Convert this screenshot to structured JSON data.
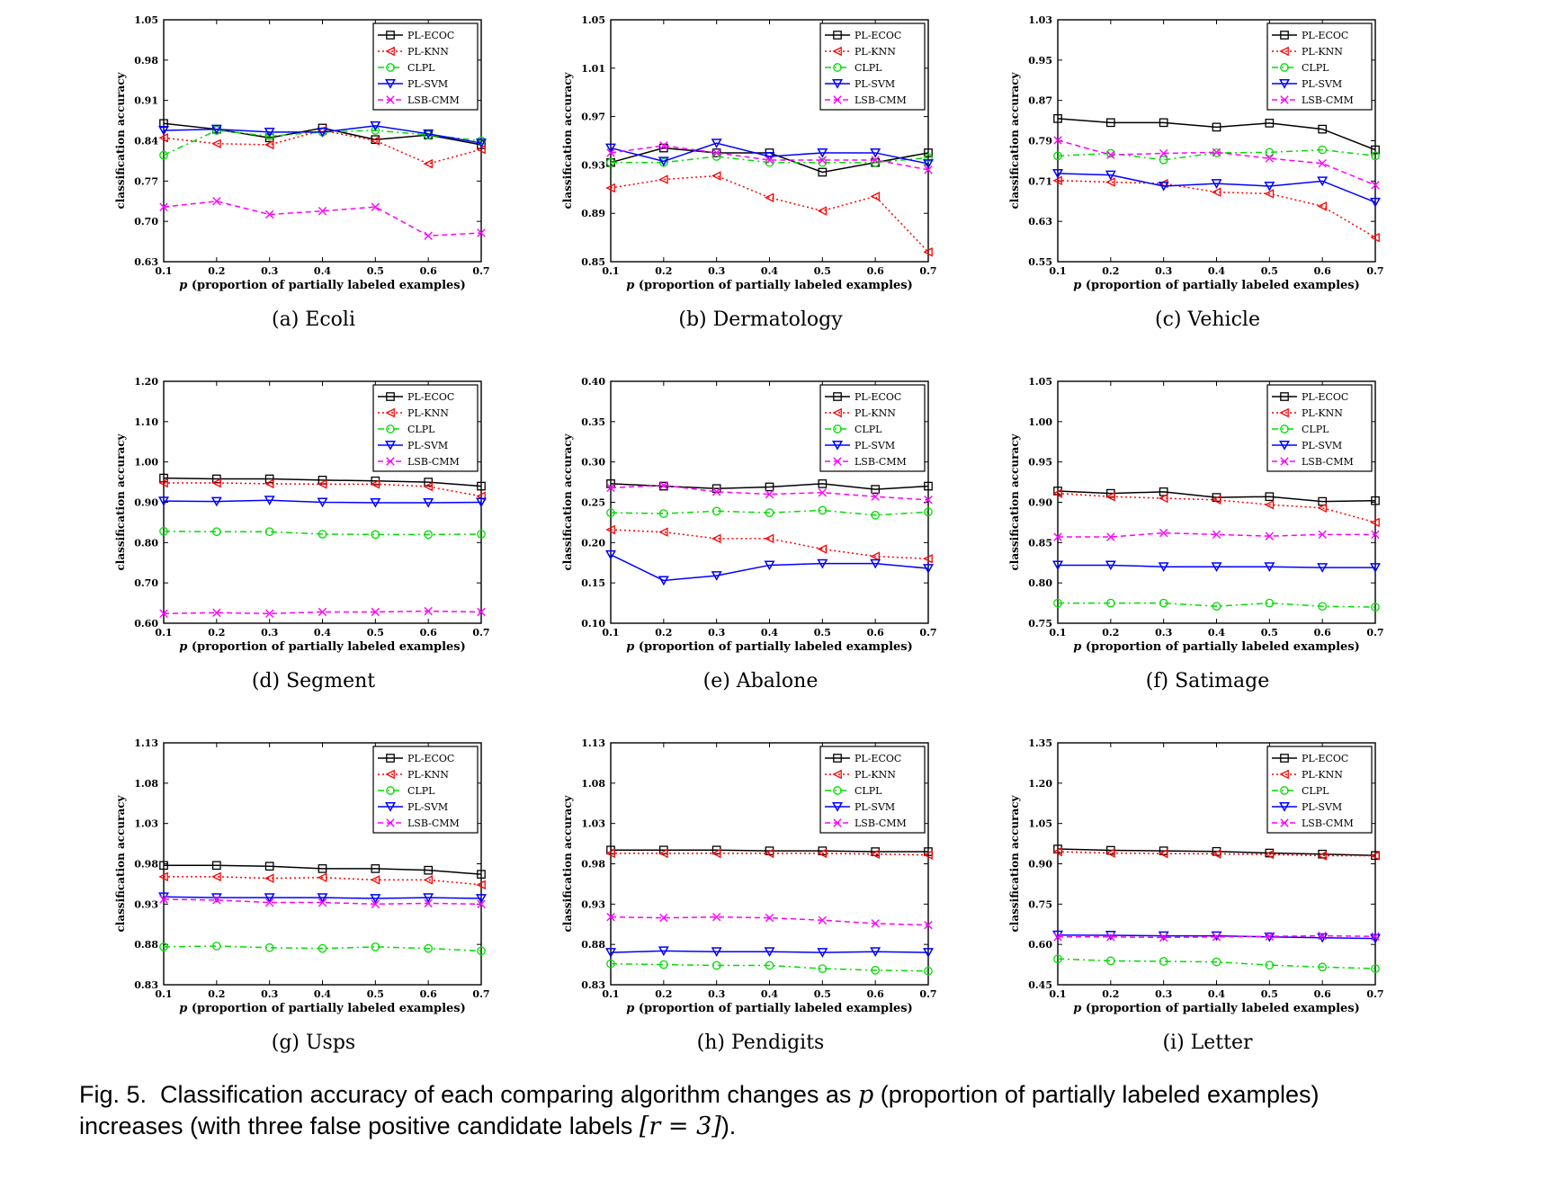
{
  "figure": {
    "caption": {
      "label": "Fig. 5.",
      "text_part1": "Classification accuracy of each comparing algorithm changes as",
      "p_symbol": "p",
      "text_part2": "(proportion of partially labeled examples)",
      "line2_text": "increases (with three false positive candidate labels",
      "math": "[r = 3]",
      "line2_end": ")."
    }
  },
  "legend": [
    {
      "name": "PL-ECOC",
      "color": "#000000",
      "marker": "square",
      "dash": ""
    },
    {
      "name": "PL-KNN",
      "color": "#ff0000",
      "marker": "triangle-left",
      "dash": "2,3"
    },
    {
      "name": "CLPL",
      "color": "#00dd00",
      "marker": "circle",
      "dash": "7,4,2,4"
    },
    {
      "name": "PL-SVM",
      "color": "#0000ff",
      "marker": "triangle-down",
      "dash": ""
    },
    {
      "name": "LSB-CMM",
      "color": "#ff00ff",
      "marker": "x",
      "dash": "6,4"
    }
  ],
  "chart_data": [
    {
      "type": "line",
      "subcaption": "(a)  Ecoli",
      "xlabel_var": "p",
      "xlabel": " (proportion of partially labeled examples)",
      "ylabel": "classification accuracy",
      "x": [
        0.1,
        0.2,
        0.3,
        0.4,
        0.5,
        0.6,
        0.7
      ],
      "xticks": [
        "0.1",
        "0.2",
        "0.3",
        "0.4",
        "0.5",
        "0.6",
        "0.7"
      ],
      "ylim": [
        0.63,
        1.05
      ],
      "yticks": [
        "0.63",
        "0.70",
        "0.77",
        "0.84",
        "0.91",
        "0.98",
        "1.05"
      ],
      "series": [
        {
          "name": "PL-ECOC",
          "values": [
            0.87,
            0.86,
            0.845,
            0.862,
            0.842,
            0.85,
            0.833
          ]
        },
        {
          "name": "PL-KNN",
          "values": [
            0.845,
            0.835,
            0.833,
            0.858,
            0.84,
            0.8,
            0.825
          ]
        },
        {
          "name": "CLPL",
          "values": [
            0.815,
            0.858,
            0.848,
            0.855,
            0.858,
            0.85,
            0.84
          ]
        },
        {
          "name": "PL-SVM",
          "values": [
            0.858,
            0.86,
            0.855,
            0.855,
            0.866,
            0.852,
            0.836
          ]
        },
        {
          "name": "LSB-CMM",
          "values": [
            0.725,
            0.735,
            0.712,
            0.718,
            0.725,
            0.675,
            0.68
          ]
        }
      ]
    },
    {
      "type": "line",
      "subcaption": "(b)  Dermatology",
      "xlabel_var": "p",
      "xlabel": " (proportion of partially labeled examples)",
      "ylabel": "classification accuracy",
      "x": [
        0.1,
        0.2,
        0.3,
        0.4,
        0.5,
        0.6,
        0.7
      ],
      "xticks": [
        "0.1",
        "0.2",
        "0.3",
        "0.4",
        "0.5",
        "0.6",
        "0.7"
      ],
      "ylim": [
        0.85,
        1.05
      ],
      "yticks": [
        "0.85",
        "0.89",
        "0.93",
        "0.97",
        "1.01",
        "1.05"
      ],
      "series": [
        {
          "name": "PL-ECOC",
          "values": [
            0.932,
            0.944,
            0.94,
            0.94,
            0.924,
            0.932,
            0.94
          ]
        },
        {
          "name": "PL-KNN",
          "values": [
            0.911,
            0.918,
            0.921,
            0.903,
            0.892,
            0.904,
            0.858
          ]
        },
        {
          "name": "CLPL",
          "values": [
            0.932,
            0.932,
            0.937,
            0.932,
            0.932,
            0.932,
            0.936
          ]
        },
        {
          "name": "PL-SVM",
          "values": [
            0.944,
            0.933,
            0.948,
            0.937,
            0.94,
            0.94,
            0.931
          ]
        },
        {
          "name": "LSB-CMM",
          "values": [
            0.94,
            0.946,
            0.94,
            0.934,
            0.934,
            0.934,
            0.926
          ]
        }
      ]
    },
    {
      "type": "line",
      "subcaption": "(c)  Vehicle",
      "xlabel_var": "p",
      "xlabel": " (proportion of partially labeled examples)",
      "ylabel": "classification accuracy",
      "x": [
        0.1,
        0.2,
        0.3,
        0.4,
        0.5,
        0.6,
        0.7
      ],
      "xticks": [
        "0.1",
        "0.2",
        "0.3",
        "0.4",
        "0.5",
        "0.6",
        "0.7"
      ],
      "ylim": [
        0.55,
        1.03
      ],
      "yticks": [
        "0.55",
        "0.63",
        "0.71",
        "0.79",
        "0.87",
        "0.95",
        "1.03"
      ],
      "series": [
        {
          "name": "PL-ECOC",
          "values": [
            0.834,
            0.826,
            0.826,
            0.817,
            0.825,
            0.813,
            0.772
          ]
        },
        {
          "name": "PL-KNN",
          "values": [
            0.711,
            0.708,
            0.705,
            0.688,
            0.685,
            0.66,
            0.598
          ]
        },
        {
          "name": "CLPL",
          "values": [
            0.76,
            0.765,
            0.752,
            0.766,
            0.767,
            0.772,
            0.76
          ]
        },
        {
          "name": "PL-SVM",
          "values": [
            0.725,
            0.722,
            0.7,
            0.705,
            0.7,
            0.71,
            0.668
          ]
        },
        {
          "name": "LSB-CMM",
          "values": [
            0.791,
            0.762,
            0.765,
            0.767,
            0.755,
            0.745,
            0.702
          ]
        }
      ]
    },
    {
      "type": "line",
      "subcaption": "(d)  Segment",
      "xlabel_var": "p",
      "xlabel": " (proportion of partially labeled examples)",
      "ylabel": "classification accuracy",
      "x": [
        0.1,
        0.2,
        0.3,
        0.4,
        0.5,
        0.6,
        0.7
      ],
      "xticks": [
        "0.1",
        "0.2",
        "0.3",
        "0.4",
        "0.5",
        "0.6",
        "0.7"
      ],
      "ylim": [
        0.6,
        1.2
      ],
      "yticks": [
        "0.60",
        "0.70",
        "0.80",
        "0.90",
        "1.00",
        "1.10",
        "1.20"
      ],
      "series": [
        {
          "name": "PL-ECOC",
          "values": [
            0.96,
            0.958,
            0.958,
            0.955,
            0.953,
            0.95,
            0.94
          ]
        },
        {
          "name": "PL-KNN",
          "values": [
            0.948,
            0.948,
            0.946,
            0.945,
            0.945,
            0.939,
            0.915
          ]
        },
        {
          "name": "CLPL",
          "values": [
            0.828,
            0.827,
            0.827,
            0.821,
            0.82,
            0.82,
            0.821
          ]
        },
        {
          "name": "PL-SVM",
          "values": [
            0.903,
            0.902,
            0.905,
            0.9,
            0.899,
            0.899,
            0.9
          ]
        },
        {
          "name": "LSB-CMM",
          "values": [
            0.624,
            0.626,
            0.624,
            0.628,
            0.628,
            0.63,
            0.628
          ]
        }
      ]
    },
    {
      "type": "line",
      "subcaption": "(e)  Abalone",
      "xlabel_var": "p",
      "xlabel": " (proportion of partially labeled examples)",
      "ylabel": "classification accuracy",
      "x": [
        0.1,
        0.2,
        0.3,
        0.4,
        0.5,
        0.6,
        0.7
      ],
      "xticks": [
        "0.1",
        "0.2",
        "0.3",
        "0.4",
        "0.5",
        "0.6",
        "0.7"
      ],
      "ylim": [
        0.1,
        0.4
      ],
      "yticks": [
        "0.10",
        "0.15",
        "0.20",
        "0.25",
        "0.30",
        "0.35",
        "0.40"
      ],
      "series": [
        {
          "name": "PL-ECOC",
          "values": [
            0.273,
            0.27,
            0.267,
            0.269,
            0.273,
            0.266,
            0.27
          ]
        },
        {
          "name": "PL-KNN",
          "values": [
            0.216,
            0.213,
            0.205,
            0.205,
            0.192,
            0.183,
            0.18
          ]
        },
        {
          "name": "CLPL",
          "values": [
            0.237,
            0.236,
            0.239,
            0.237,
            0.24,
            0.234,
            0.238
          ]
        },
        {
          "name": "PL-SVM",
          "values": [
            0.185,
            0.153,
            0.159,
            0.172,
            0.174,
            0.174,
            0.168
          ]
        },
        {
          "name": "LSB-CMM",
          "values": [
            0.268,
            0.271,
            0.263,
            0.26,
            0.262,
            0.257,
            0.253
          ]
        }
      ]
    },
    {
      "type": "line",
      "subcaption": "(f)  Satimage",
      "xlabel_var": "p",
      "xlabel": " (proportion of partially labeled examples)",
      "ylabel": "classification accuracy",
      "x": [
        0.1,
        0.2,
        0.3,
        0.4,
        0.5,
        0.6,
        0.7
      ],
      "xticks": [
        "0.1",
        "0.2",
        "0.3",
        "0.4",
        "0.5",
        "0.6",
        "0.7"
      ],
      "ylim": [
        0.75,
        1.05
      ],
      "yticks": [
        "0.75",
        "0.80",
        "0.85",
        "0.90",
        "0.95",
        "1.00",
        "1.05"
      ],
      "series": [
        {
          "name": "PL-ECOC",
          "values": [
            0.914,
            0.911,
            0.913,
            0.906,
            0.907,
            0.901,
            0.902
          ]
        },
        {
          "name": "PL-KNN",
          "values": [
            0.911,
            0.907,
            0.905,
            0.903,
            0.897,
            0.893,
            0.875
          ]
        },
        {
          "name": "CLPL",
          "values": [
            0.775,
            0.775,
            0.775,
            0.771,
            0.775,
            0.771,
            0.77
          ]
        },
        {
          "name": "PL-SVM",
          "values": [
            0.822,
            0.822,
            0.82,
            0.82,
            0.82,
            0.819,
            0.819
          ]
        },
        {
          "name": "LSB-CMM",
          "values": [
            0.857,
            0.857,
            0.862,
            0.86,
            0.858,
            0.86,
            0.86
          ]
        }
      ]
    },
    {
      "type": "line",
      "subcaption": "(g)  Usps",
      "xlabel_var": "p",
      "xlabel": " (proportion of partially labeled examples)",
      "ylabel": "classification accuracy",
      "x": [
        0.1,
        0.2,
        0.3,
        0.4,
        0.5,
        0.6,
        0.7
      ],
      "xticks": [
        "0.1",
        "0.2",
        "0.3",
        "0.4",
        "0.5",
        "0.6",
        "0.7"
      ],
      "ylim": [
        0.83,
        1.13
      ],
      "yticks": [
        "0.83",
        "0.88",
        "0.93",
        "0.98",
        "1.03",
        "1.08",
        "1.13"
      ],
      "series": [
        {
          "name": "PL-ECOC",
          "values": [
            0.978,
            0.978,
            0.977,
            0.974,
            0.974,
            0.972,
            0.967
          ]
        },
        {
          "name": "PL-KNN",
          "values": [
            0.964,
            0.964,
            0.962,
            0.963,
            0.96,
            0.96,
            0.954
          ]
        },
        {
          "name": "CLPL",
          "values": [
            0.877,
            0.878,
            0.876,
            0.875,
            0.877,
            0.875,
            0.872
          ]
        },
        {
          "name": "PL-SVM",
          "values": [
            0.939,
            0.938,
            0.938,
            0.938,
            0.937,
            0.938,
            0.937
          ]
        },
        {
          "name": "LSB-CMM",
          "values": [
            0.936,
            0.935,
            0.932,
            0.932,
            0.93,
            0.931,
            0.93
          ]
        }
      ]
    },
    {
      "type": "line",
      "subcaption": "(h)  Pendigits",
      "xlabel_var": "p",
      "xlabel": " (proportion of partially labeled examples)",
      "ylabel": "classification accuracy",
      "x": [
        0.1,
        0.2,
        0.3,
        0.4,
        0.5,
        0.6,
        0.7
      ],
      "xticks": [
        "0.1",
        "0.2",
        "0.3",
        "0.4",
        "0.5",
        "0.6",
        "0.7"
      ],
      "ylim": [
        0.83,
        1.13
      ],
      "yticks": [
        "0.83",
        "0.88",
        "0.93",
        "0.98",
        "1.03",
        "1.08",
        "1.13"
      ],
      "series": [
        {
          "name": "PL-ECOC",
          "values": [
            0.997,
            0.997,
            0.997,
            0.996,
            0.996,
            0.995,
            0.995
          ]
        },
        {
          "name": "PL-KNN",
          "values": [
            0.993,
            0.993,
            0.993,
            0.993,
            0.993,
            0.992,
            0.991
          ]
        },
        {
          "name": "CLPL",
          "values": [
            0.856,
            0.855,
            0.854,
            0.854,
            0.85,
            0.848,
            0.847
          ]
        },
        {
          "name": "PL-SVM",
          "values": [
            0.87,
            0.872,
            0.871,
            0.871,
            0.87,
            0.871,
            0.87
          ]
        },
        {
          "name": "LSB-CMM",
          "values": [
            0.914,
            0.913,
            0.914,
            0.913,
            0.91,
            0.906,
            0.904
          ]
        }
      ]
    },
    {
      "type": "line",
      "subcaption": "(i)  Letter",
      "xlabel_var": "p",
      "xlabel": " (proportion of partially labeled examples)",
      "ylabel": "classification accuracy",
      "x": [
        0.1,
        0.2,
        0.3,
        0.4,
        0.5,
        0.6,
        0.7
      ],
      "xticks": [
        "0.1",
        "0.2",
        "0.3",
        "0.4",
        "0.5",
        "0.6",
        "0.7"
      ],
      "ylim": [
        0.45,
        1.35
      ],
      "yticks": [
        "0.45",
        "0.60",
        "0.75",
        "0.90",
        "1.05",
        "1.20",
        "1.35"
      ],
      "series": [
        {
          "name": "PL-ECOC",
          "values": [
            0.955,
            0.95,
            0.948,
            0.946,
            0.94,
            0.936,
            0.931
          ]
        },
        {
          "name": "PL-KNN",
          "values": [
            0.945,
            0.94,
            0.938,
            0.937,
            0.935,
            0.93,
            0.93
          ]
        },
        {
          "name": "CLPL",
          "values": [
            0.546,
            0.539,
            0.537,
            0.535,
            0.523,
            0.516,
            0.51
          ]
        },
        {
          "name": "PL-SVM",
          "values": [
            0.635,
            0.634,
            0.632,
            0.632,
            0.628,
            0.625,
            0.622
          ]
        },
        {
          "name": "LSB-CMM",
          "values": [
            0.628,
            0.628,
            0.626,
            0.628,
            0.63,
            0.632,
            0.63
          ]
        }
      ]
    }
  ]
}
